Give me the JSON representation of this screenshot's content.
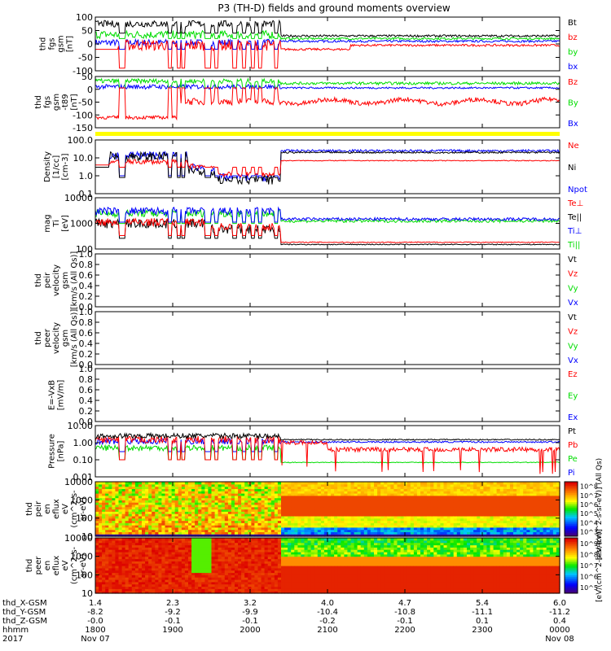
{
  "title": "P3 (TH-D) fields and ground moments overview",
  "colors": {
    "black": "#000000",
    "red": "#ff0000",
    "green": "#00dd00",
    "blue": "#0000ff",
    "yellow": "#ffff00"
  },
  "chart_data": {
    "type": "line",
    "x_ticks": [
      "1800",
      "1900",
      "2000",
      "2100",
      "2200",
      "2300",
      "0000"
    ],
    "x_range_hhmm": [
      "1800",
      "0000"
    ],
    "panels": [
      {
        "id": "fgs_gsm",
        "ylabel": [
          "thd",
          "fgs",
          "gsm",
          "[nT]"
        ],
        "ylim": [
          -100,
          100
        ],
        "scale": "linear",
        "yticks": [
          "100",
          "50",
          "0",
          "-50",
          "-100"
        ],
        "series": [
          {
            "name": "Bt",
            "color": "black"
          },
          {
            "name": "bz",
            "color": "red"
          },
          {
            "name": "by",
            "color": "green"
          },
          {
            "name": "bx",
            "color": "blue"
          }
        ]
      },
      {
        "id": "fgs_gsm_t89",
        "ylabel": [
          "thd",
          "fgs",
          "gsm",
          "-t89",
          "[nT]"
        ],
        "ylim": [
          -175,
          50
        ],
        "scale": "linear",
        "yticks": [
          "50",
          "0",
          "-50",
          "-100",
          "-150"
        ],
        "series": [
          {
            "name": "Bz",
            "color": "red"
          },
          {
            "name": "By",
            "color": "green"
          },
          {
            "name": "Bx",
            "color": "blue"
          }
        ]
      },
      {
        "id": "density",
        "ylabel": [
          "Density",
          "[1/cc]",
          "[cm-3]"
        ],
        "ylim": [
          0.1,
          100
        ],
        "scale": "log",
        "yticks": [
          "100.0",
          "10.0",
          "1.0",
          "0.1"
        ],
        "series": [
          {
            "name": "Ne",
            "color": "red"
          },
          {
            "name": "Ni",
            "color": "black"
          },
          {
            "name": "Npot",
            "color": "blue"
          }
        ]
      },
      {
        "id": "temp",
        "ylabel": [
          "mag",
          "Ti",
          "[eV]"
        ],
        "ylim": [
          50,
          10000
        ],
        "scale": "log",
        "yticks": [
          "10000",
          "1000",
          "100"
        ],
        "series": [
          {
            "name": "Te⊥",
            "color": "red"
          },
          {
            "name": "Te||",
            "color": "black"
          },
          {
            "name": "Ti⊥",
            "color": "blue"
          },
          {
            "name": "Ti||",
            "color": "green"
          }
        ]
      },
      {
        "id": "peir_vel",
        "ylabel": [
          "thd",
          "peir",
          "velocity",
          "gsm",
          "[km/s (All Qs)]"
        ],
        "ylim": [
          0,
          1
        ],
        "scale": "linear",
        "yticks": [
          "1.0",
          "0.8",
          "0.6",
          "0.4",
          "0.2",
          "0.0"
        ],
        "series": [
          {
            "name": "Vt",
            "color": "black"
          },
          {
            "name": "Vz",
            "color": "red"
          },
          {
            "name": "Vy",
            "color": "green"
          },
          {
            "name": "Vx",
            "color": "blue"
          }
        ]
      },
      {
        "id": "peer_vel",
        "ylabel": [
          "thd",
          "peer",
          "velocity",
          "gsm",
          "[km/s (All Qs)]"
        ],
        "ylim": [
          0,
          1
        ],
        "scale": "linear",
        "yticks": [
          "1.0",
          "0.8",
          "0.6",
          "0.4",
          "0.2",
          "0.0"
        ],
        "series": [
          {
            "name": "Vt",
            "color": "black"
          },
          {
            "name": "Vz",
            "color": "red"
          },
          {
            "name": "Vy",
            "color": "green"
          },
          {
            "name": "Vx",
            "color": "blue"
          }
        ]
      },
      {
        "id": "efield",
        "ylabel": [
          "E=-VxB",
          "[mV/m]"
        ],
        "ylim": [
          0,
          1
        ],
        "scale": "linear",
        "yticks": [
          "1.0",
          "0.8",
          "0.6",
          "0.4",
          "0.2",
          "0.0"
        ],
        "series": [
          {
            "name": "Ez",
            "color": "red"
          },
          {
            "name": "Ey",
            "color": "green"
          },
          {
            "name": "Ex",
            "color": "blue"
          }
        ]
      },
      {
        "id": "pressure",
        "ylabel": [
          "Pressure",
          "[nPa]"
        ],
        "ylim": [
          0.01,
          10
        ],
        "scale": "log",
        "yticks": [
          "10.00",
          "1.00",
          "0.10",
          "0.01"
        ],
        "series": [
          {
            "name": "Pt",
            "color": "black"
          },
          {
            "name": "Pb",
            "color": "red"
          },
          {
            "name": "Pe",
            "color": "green"
          },
          {
            "name": "Pi",
            "color": "blue"
          }
        ]
      },
      {
        "id": "peir_spec",
        "ylabel": [
          "thd",
          "peir",
          "en",
          "eflux",
          "eV",
          "(cm^2-s-",
          "sr-eV)"
        ],
        "ylim": [
          5,
          30000
        ],
        "scale": "log",
        "yticks": [
          "10000",
          "1000",
          "100",
          "10"
        ],
        "colorbar": {
          "label": "[eV/(cm^2-s-sr-eV)] (All Qs)",
          "ticks": [
            "10^3",
            "10^4",
            "10^5",
            "10^6",
            "10^7",
            "10^8"
          ]
        }
      },
      {
        "id": "peer_spec",
        "ylabel": [
          "thd",
          "peer",
          "en",
          "eflux",
          "eV",
          "(cm^2-s-",
          "sr-eV)"
        ],
        "ylim": [
          5,
          30000
        ],
        "scale": "log",
        "yticks": [
          "10000",
          "1000",
          "100",
          "10"
        ],
        "colorbar": {
          "label": "[eV/(cm^2-s-sr-eV)]",
          "ticks": [
            "10^5",
            "10^6",
            "10^7",
            "10^8",
            "10^9"
          ]
        }
      }
    ],
    "ephemeris": {
      "labels": [
        "thd_X-GSM",
        "thd_Y-GSM",
        "thd_Z-GSM",
        "hhmm",
        "2017"
      ],
      "rows": [
        [
          "1.4",
          "2.3",
          "3.2",
          "4.0",
          "4.7",
          "5.4",
          "6.0"
        ],
        [
          "-8.2",
          "-9.2",
          "-9.9",
          "-10.4",
          "-10.8",
          "-11.1",
          "-11.2"
        ],
        [
          "-0.0",
          "-0.1",
          "-0.1",
          "-0.2",
          "-0.1",
          "0.1",
          "0.4"
        ],
        [
          "1800",
          "1900",
          "2000",
          "2100",
          "2200",
          "2300",
          "0000"
        ],
        [
          "Nov 07",
          "",
          "",
          "",
          "",
          "",
          "Nov 08"
        ]
      ]
    }
  }
}
